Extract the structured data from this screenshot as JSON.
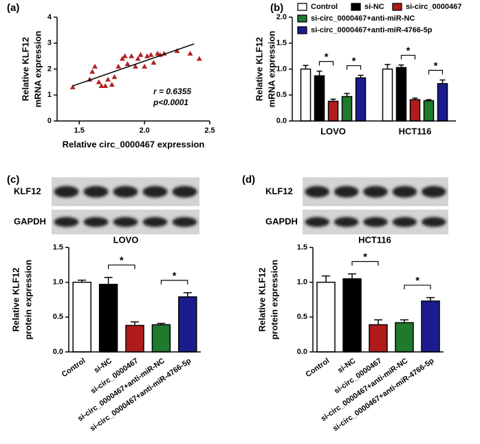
{
  "chart_data": [
    {
      "type": "scatter",
      "panel_label": "(a)",
      "xlabel": "Relative circ_0000467  expression",
      "ylabel": [
        "Relative KLF12",
        "mRNA expression"
      ],
      "x": [
        1.45,
        1.58,
        1.6,
        1.62,
        1.65,
        1.67,
        1.7,
        1.72,
        1.75,
        1.77,
        1.8,
        1.83,
        1.85,
        1.87,
        1.9,
        1.93,
        1.95,
        1.97,
        2.0,
        2.02,
        2.05,
        2.07,
        2.1,
        2.12,
        2.15,
        2.25,
        2.35,
        2.42
      ],
      "y": [
        1.3,
        1.6,
        1.9,
        2.1,
        1.5,
        1.35,
        1.35,
        1.6,
        1.4,
        1.7,
        2.1,
        2.4,
        2.5,
        2.2,
        2.5,
        2.1,
        2.4,
        2.55,
        2.1,
        2.5,
        2.55,
        2.25,
        2.6,
        2.55,
        2.6,
        2.7,
        2.6,
        2.4
      ],
      "color": "#b22222",
      "xlim": [
        1.33,
        2.5
      ],
      "ylim": [
        0,
        4
      ],
      "xticks": [
        1.5,
        {
          "value": 2,
          "label": "2.0"
        },
        2.5
      ],
      "yticks": [
        0,
        1,
        2,
        3,
        4
      ],
      "fit_line": {
        "x": [
          1.45,
          2.38
        ],
        "y": [
          1.35,
          2.97
        ]
      },
      "annotations": [
        "r = 0.6355",
        "p<0.0001"
      ]
    },
    {
      "type": "grouped_bar",
      "panel_label": "(b)",
      "ylabel": [
        "Relative KLF12",
        "mRNA expression"
      ],
      "categories": [
        "LOVO",
        "HCT116"
      ],
      "series": [
        {
          "name": "Control",
          "color": "#ffffff",
          "values": [
            1.0,
            1.0
          ],
          "errors": [
            0.07,
            0.09
          ]
        },
        {
          "name": "si-NC",
          "color": "#000000",
          "values": [
            0.87,
            1.03
          ],
          "errors": [
            0.09,
            0.05
          ]
        },
        {
          "name": "si-circ_0000467",
          "color": "#b01c1c",
          "values": [
            0.38,
            0.41
          ],
          "errors": [
            0.04,
            0.03
          ]
        },
        {
          "name": "si-circ_0000467+anti-miR-NC",
          "color": "#1e7a2c",
          "values": [
            0.47,
            0.39
          ],
          "errors": [
            0.06,
            0.02
          ]
        },
        {
          "name": "si-circ_0000467+anti-miR-4766-5p",
          "color": "#1c1c8e",
          "values": [
            0.83,
            0.72
          ],
          "errors": [
            0.05,
            0.07
          ]
        }
      ],
      "ylim": [
        0,
        2
      ],
      "yticks": [
        {
          "value": 0,
          "label": "0.0"
        },
        0.5,
        {
          "value": 1,
          "label": "1.0"
        },
        1.5,
        {
          "value": 2,
          "label": "2.0"
        }
      ],
      "significance_labels": [
        "*",
        "*",
        "*",
        "*"
      ]
    },
    {
      "type": "bar",
      "panel_label": "(c)",
      "blot_labels": [
        "KLF12",
        "GAPDH"
      ],
      "title": "LOVO",
      "ylabel": [
        "Relative KLF12",
        "protein expression"
      ],
      "categories": [
        "Control",
        "si-NC",
        "si-circ_0000467",
        "si-circ_0000467+anti-miR-NC",
        "si-circ_0000467+anti-miR-4766-5p"
      ],
      "values": [
        1.0,
        0.97,
        0.38,
        0.39,
        0.79
      ],
      "errors": [
        0.03,
        0.1,
        0.05,
        0.02,
        0.06
      ],
      "colors": [
        "#ffffff",
        "#000000",
        "#b01c1c",
        "#1e7a2c",
        "#1c1c8e"
      ],
      "ylim": [
        0,
        1.5
      ],
      "yticks": [
        {
          "value": 0,
          "label": "0.0"
        },
        0.5,
        {
          "value": 1,
          "label": "1.0"
        },
        1.5
      ],
      "significance_labels": [
        "*",
        "*"
      ]
    },
    {
      "type": "bar",
      "panel_label": "(d)",
      "blot_labels": [
        "KLF12",
        "GAPDH"
      ],
      "title": "HCT116",
      "ylabel": [
        "Relative KLF12",
        "protein expression"
      ],
      "categories": [
        "Control",
        "si-NC",
        "si-circ_0000467",
        "si-circ_0000467+anti-miR-NC",
        "si-circ_0000467+anti-miR-4766-5p"
      ],
      "values": [
        1.0,
        1.05,
        0.39,
        0.42,
        0.73
      ],
      "errors": [
        0.09,
        0.07,
        0.07,
        0.04,
        0.05
      ],
      "colors": [
        "#ffffff",
        "#000000",
        "#b01c1c",
        "#1e7a2c",
        "#1c1c8e"
      ],
      "ylim": [
        0,
        1.5
      ],
      "yticks": [
        {
          "value": 0,
          "label": "0.0"
        },
        0.5,
        {
          "value": 1,
          "label": "1.0"
        },
        1.5
      ],
      "significance_labels": [
        "*",
        "*"
      ]
    }
  ]
}
